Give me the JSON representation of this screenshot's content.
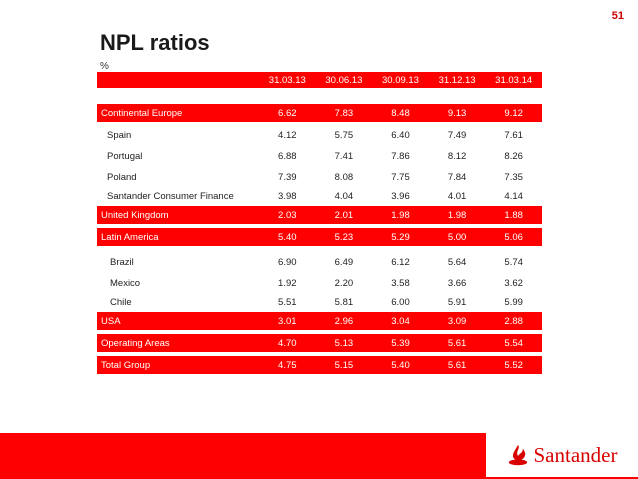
{
  "page": {
    "number": "51",
    "title": "NPL ratios",
    "unit": "%"
  },
  "table": {
    "dates": [
      "31.03.13",
      "30.06.13",
      "30.09.13",
      "31.12.13",
      "31.03.14"
    ],
    "rows": [
      {
        "label": "Continental Europe",
        "values": [
          "6.62",
          "7.83",
          "8.48",
          "9.13",
          "9.12"
        ]
      },
      {
        "label": "Spain",
        "values": [
          "4.12",
          "5.75",
          "6.40",
          "7.49",
          "7.61"
        ]
      },
      {
        "label": "Portugal",
        "values": [
          "6.88",
          "7.41",
          "7.86",
          "8.12",
          "8.26"
        ]
      },
      {
        "label": "Poland",
        "values": [
          "7.39",
          "8.08",
          "7.75",
          "7.84",
          "7.35"
        ]
      },
      {
        "label": "Santander Consumer Finance",
        "values": [
          "3.98",
          "4.04",
          "3.96",
          "4.01",
          "4.14"
        ]
      },
      {
        "label": "United Kingdom",
        "values": [
          "2.03",
          "2.01",
          "1.98",
          "1.98",
          "1.88"
        ]
      },
      {
        "label": "Latin America",
        "values": [
          "5.40",
          "5.23",
          "5.29",
          "5.00",
          "5.06"
        ]
      },
      {
        "label": "Brazil",
        "values": [
          "6.90",
          "6.49",
          "6.12",
          "5.64",
          "5.74"
        ]
      },
      {
        "label": "Mexico",
        "values": [
          "1.92",
          "2.20",
          "3.58",
          "3.66",
          "3.62"
        ]
      },
      {
        "label": "Chile",
        "values": [
          "5.51",
          "5.81",
          "6.00",
          "5.91",
          "5.99"
        ]
      },
      {
        "label": "USA",
        "values": [
          "3.01",
          "2.96",
          "3.04",
          "3.09",
          "2.88"
        ]
      },
      {
        "label": "Operating Areas",
        "values": [
          "4.70",
          "5.13",
          "5.39",
          "5.61",
          "5.54"
        ]
      },
      {
        "label": "Total Group",
        "values": [
          "4.75",
          "5.15",
          "5.40",
          "5.61",
          "5.52"
        ]
      }
    ]
  },
  "footer": {
    "brand": "Santander",
    "logo_icon": "santander-flame-icon"
  },
  "colors": {
    "accent": "#ff0000",
    "brand_text": "#d90000",
    "page_number": "#cc0000"
  }
}
